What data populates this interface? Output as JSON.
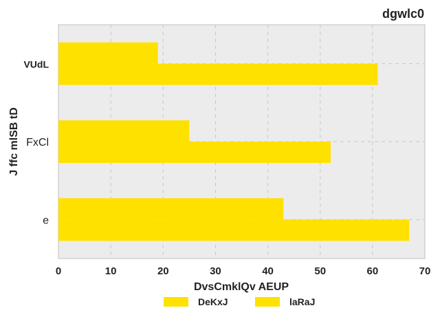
{
  "chart_data": {
    "type": "bar",
    "orientation": "horizontal",
    "title": "dgwlc0",
    "xlabel": "DvsCmklQv AEUP",
    "ylabel": "J ffc mlSB tD",
    "categories": [
      "VUdL",
      "FxCl",
      "e"
    ],
    "series": [
      {
        "name": "DeKxJ",
        "values": [
          19,
          25,
          43
        ],
        "color": "#ffe100"
      },
      {
        "name": "laRaJ",
        "values": [
          61,
          52,
          67
        ],
        "color": "#ffe100"
      }
    ],
    "xlim": [
      0,
      70
    ],
    "xticks": [
      "0",
      "10",
      "20",
      "30",
      "40",
      "50",
      "60",
      "70"
    ],
    "grid": true,
    "legend_position": "bottom-center",
    "colors": {
      "background": "#ececec",
      "grid": "#c8c8c8",
      "bar": "#ffe100"
    }
  }
}
